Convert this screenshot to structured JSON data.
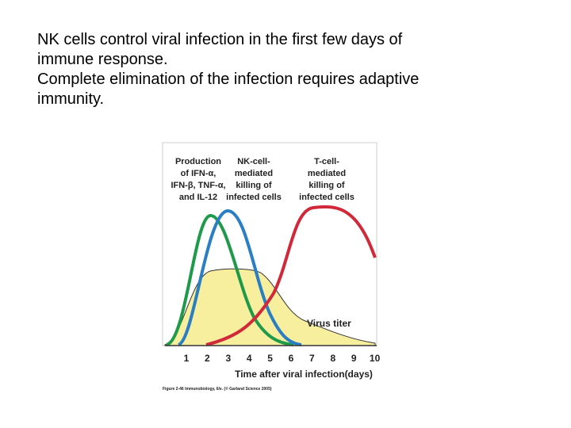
{
  "slide": {
    "lines": [
      "NK cells control viral infection in the first few days of",
      "immune response.",
      "Complete elimination of the infection requires adaptive",
      "immunity."
    ]
  },
  "figure": {
    "labels": [
      {
        "lines": [
          "Production",
          "of IFN-α,",
          "IFN-β, TNF-α,",
          "and IL-12"
        ]
      },
      {
        "lines": [
          "NK-cell-",
          "mediated",
          "killing of",
          "infected cells"
        ]
      },
      {
        "lines": [
          "T-cell-",
          "mediated",
          "killing of",
          "infected cells"
        ]
      }
    ],
    "virus_label": "Virus titer",
    "x_ticks": [
      "1",
      "2",
      "3",
      "4",
      "5",
      "6",
      "7",
      "8",
      "9",
      "10"
    ],
    "x_axis_title": "Time after viral infection(days)",
    "caption": "Figure 2-46 Immunobiology, 6/e. (© Garland Science 2005)"
  }
}
